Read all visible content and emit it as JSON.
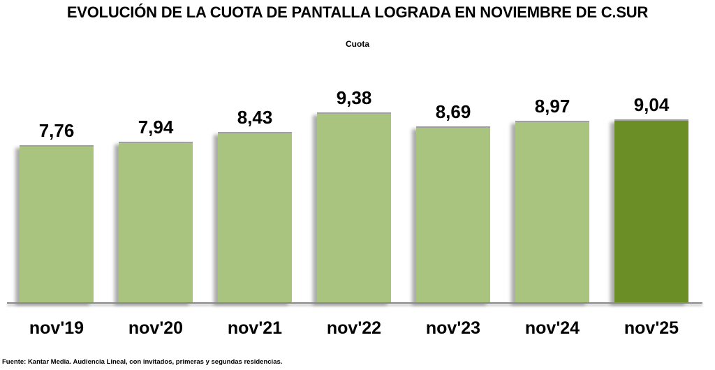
{
  "page": {
    "title": "EVOLUCIÓN DE LA CUOTA DE PANTALLA LOGRADA EN NOVIEMBRE DE C.SUR",
    "legend": "Cuota",
    "source": "Fuente: Kantar Media. Audiencia Lineal, con invitados, primeras y segundas residencias."
  },
  "chart_data": {
    "type": "bar",
    "title": "EVOLUCIÓN DE LA CUOTA DE PANTALLA LOGRADA EN NOVIEMBRE DE C.SUR",
    "legend": "Cuota",
    "legend_position": "top-center",
    "categories": [
      "nov'19",
      "nov'20",
      "nov'21",
      "nov'22",
      "nov'23",
      "nov'24",
      "nov'25"
    ],
    "values": [
      7.76,
      7.94,
      8.43,
      9.38,
      8.69,
      8.97,
      9.04
    ],
    "value_labels": [
      "7,76",
      "7,94",
      "8,43",
      "9,38",
      "8,69",
      "8,97",
      "9,04"
    ],
    "xlabel": "",
    "ylabel": "",
    "ylim": [
      0,
      10
    ],
    "grid": false,
    "bar_color": "#a9c47f",
    "highlight_bar_color": "#6c8e26",
    "highlight_index": 6,
    "axis_color": "#8a8a8a",
    "source": "Fuente: Kantar Media. Audiencia Lineal, con invitados, primeras y segundas residencias."
  }
}
